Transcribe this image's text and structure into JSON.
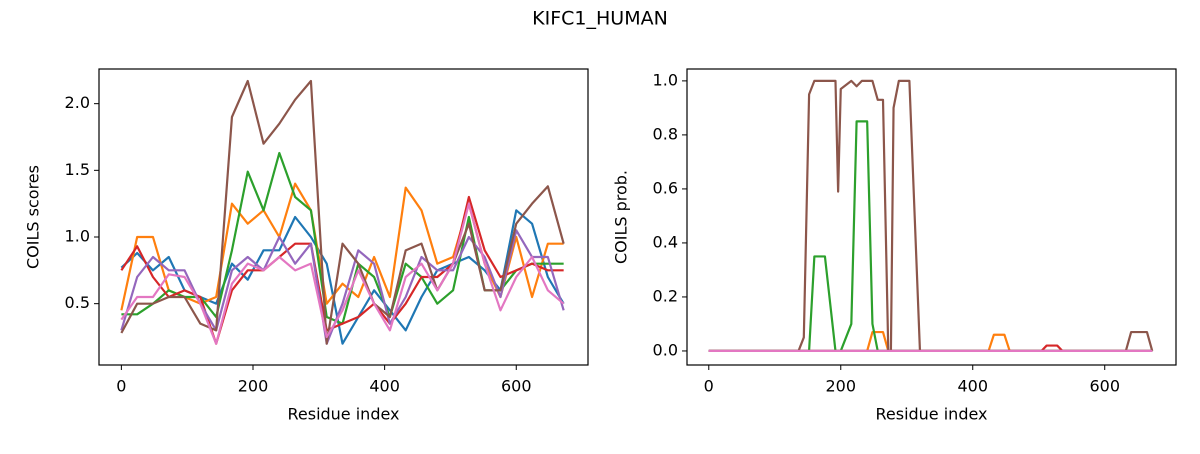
{
  "title": "KIFC1_HUMAN",
  "chart_data": [
    {
      "type": "line",
      "xlabel": "Residue index",
      "ylabel": "COILS scores",
      "xlim": [
        -34,
        709
      ],
      "ylim": [
        0.04,
        2.26
      ],
      "xticks": [
        0,
        200,
        400,
        600
      ],
      "yticks": [
        0.5,
        {
          "value": 1.0,
          "label": "1.0"
        },
        1.5,
        {
          "value": 2.0,
          "label": "2.0"
        }
      ],
      "x": [
        0,
        24,
        48,
        72,
        96,
        120,
        144,
        168,
        192,
        216,
        240,
        264,
        288,
        312,
        336,
        360,
        384,
        408,
        432,
        456,
        480,
        504,
        528,
        552,
        576,
        600,
        624,
        648,
        672
      ],
      "series": [
        {
          "color": "#1f77b4",
          "values": [
            0.77,
            0.88,
            0.75,
            0.85,
            0.6,
            0.55,
            0.5,
            0.8,
            0.68,
            0.9,
            0.9,
            1.15,
            1.0,
            0.8,
            0.2,
            0.4,
            0.6,
            0.45,
            0.3,
            0.55,
            0.75,
            0.8,
            0.85,
            0.75,
            0.6,
            1.2,
            1.1,
            0.7,
            0.5
          ]
        },
        {
          "color": "#ff7f0e",
          "values": [
            0.45,
            1.0,
            1.0,
            0.6,
            0.55,
            0.5,
            0.55,
            1.25,
            1.1,
            1.2,
            1.0,
            1.4,
            1.2,
            0.5,
            0.65,
            0.55,
            0.85,
            0.55,
            1.37,
            1.2,
            0.8,
            0.85,
            1.25,
            0.8,
            0.55,
            1.0,
            0.55,
            0.95,
            0.95
          ]
        },
        {
          "color": "#2ca02c",
          "values": [
            0.42,
            0.42,
            0.5,
            0.6,
            0.55,
            0.55,
            0.4,
            0.9,
            1.49,
            1.2,
            1.63,
            1.3,
            1.2,
            0.4,
            0.35,
            0.8,
            0.7,
            0.4,
            0.8,
            0.7,
            0.5,
            0.6,
            1.15,
            0.6,
            0.6,
            0.75,
            0.8,
            0.8,
            0.8
          ]
        },
        {
          "color": "#d62728",
          "values": [
            0.75,
            0.93,
            0.7,
            0.55,
            0.6,
            0.55,
            0.2,
            0.6,
            0.75,
            0.75,
            0.85,
            0.95,
            0.95,
            0.3,
            0.35,
            0.4,
            0.5,
            0.35,
            0.5,
            0.7,
            0.7,
            0.8,
            1.3,
            0.9,
            0.7,
            0.75,
            0.8,
            0.75,
            0.75
          ]
        },
        {
          "color": "#9467bd",
          "values": [
            0.3,
            0.7,
            0.85,
            0.75,
            0.75,
            0.5,
            0.3,
            0.75,
            0.85,
            0.75,
            1.0,
            0.8,
            0.95,
            0.2,
            0.5,
            0.9,
            0.8,
            0.35,
            0.55,
            0.85,
            0.75,
            0.75,
            1.0,
            0.85,
            0.55,
            1.05,
            0.85,
            0.85,
            0.45
          ]
        },
        {
          "color": "#8c564b",
          "values": [
            0.28,
            0.5,
            0.5,
            0.55,
            0.55,
            0.35,
            0.3,
            1.9,
            2.17,
            1.7,
            1.85,
            2.03,
            2.17,
            0.2,
            0.95,
            0.8,
            0.5,
            0.4,
            0.9,
            0.95,
            0.6,
            0.8,
            1.1,
            0.6,
            0.6,
            1.1,
            1.25,
            1.38,
            0.95
          ]
        },
        {
          "color": "#e377c2",
          "values": [
            0.38,
            0.55,
            0.55,
            0.72,
            0.7,
            0.5,
            0.2,
            0.65,
            0.8,
            0.75,
            0.85,
            0.75,
            0.8,
            0.25,
            0.45,
            0.75,
            0.5,
            0.3,
            0.7,
            0.8,
            0.6,
            0.8,
            1.25,
            0.8,
            0.45,
            0.7,
            0.85,
            0.6,
            0.5
          ]
        }
      ]
    },
    {
      "type": "line",
      "xlabel": "Residue index",
      "ylabel": "COILS prob.",
      "xlim": [
        -33,
        708
      ],
      "ylim": [
        -0.052,
        1.044
      ],
      "xticks": [
        0,
        200,
        400,
        600
      ],
      "yticks": [
        {
          "value": 0.0,
          "label": "0.0"
        },
        0.2,
        0.4,
        0.6,
        0.8,
        {
          "value": 1.0,
          "label": "1.0"
        }
      ],
      "x": [
        0,
        120,
        136,
        144,
        152,
        160,
        176,
        192,
        196,
        200,
        216,
        224,
        232,
        240,
        248,
        256,
        264,
        272,
        276,
        280,
        288,
        296,
        304,
        312,
        320,
        400,
        424,
        432,
        448,
        456,
        504,
        512,
        528,
        536,
        600,
        632,
        640,
        656,
        664,
        672
      ],
      "series": [
        {
          "color": "#1f77b4",
          "values": [
            0,
            0,
            0,
            0,
            0,
            0,
            0,
            0,
            0,
            0,
            0,
            0,
            0,
            0,
            0,
            0,
            0,
            0,
            0,
            0,
            0,
            0,
            0,
            0,
            0,
            0,
            0,
            0,
            0,
            0,
            0,
            0,
            0,
            0,
            0,
            0,
            0,
            0,
            0,
            0
          ]
        },
        {
          "color": "#ff7f0e",
          "values": [
            0,
            0,
            0,
            0,
            0,
            0,
            0,
            0,
            0,
            0,
            0,
            0,
            0,
            0,
            0.07,
            0.07,
            0.07,
            0,
            0,
            0,
            0,
            0,
            0,
            0,
            0,
            0,
            0,
            0.06,
            0.06,
            0,
            0,
            0,
            0,
            0,
            0,
            0,
            0,
            0,
            0,
            0
          ]
        },
        {
          "color": "#2ca02c",
          "values": [
            0,
            0,
            0,
            0,
            0,
            0.35,
            0.35,
            0,
            0,
            0,
            0.1,
            0.85,
            0.85,
            0.85,
            0.1,
            0,
            0,
            0,
            0,
            0,
            0,
            0,
            0,
            0,
            0,
            0,
            0,
            0,
            0,
            0,
            0,
            0,
            0,
            0,
            0,
            0,
            0,
            0,
            0,
            0
          ]
        },
        {
          "color": "#d62728",
          "values": [
            0,
            0,
            0,
            0,
            0,
            0,
            0,
            0,
            0,
            0,
            0,
            0,
            0,
            0,
            0,
            0,
            0,
            0,
            0,
            0,
            0,
            0,
            0,
            0,
            0,
            0,
            0,
            0,
            0,
            0,
            0,
            0.02,
            0.02,
            0,
            0,
            0,
            0,
            0,
            0,
            0
          ]
        },
        {
          "color": "#9467bd",
          "values": [
            0,
            0,
            0,
            0,
            0,
            0,
            0,
            0,
            0,
            0,
            0,
            0,
            0,
            0,
            0,
            0,
            0,
            0,
            0,
            0,
            0,
            0,
            0,
            0,
            0,
            0,
            0,
            0,
            0,
            0,
            0,
            0,
            0,
            0,
            0,
            0,
            0,
            0,
            0,
            0
          ]
        },
        {
          "color": "#8c564b",
          "values": [
            0,
            0,
            0,
            0.05,
            0.95,
            1,
            1,
            1,
            0.59,
            0.97,
            1,
            0.98,
            1,
            1,
            1,
            0.93,
            0.93,
            0,
            0,
            0.9,
            1,
            1,
            1,
            0.5,
            0,
            0,
            0,
            0,
            0,
            0,
            0,
            0,
            0,
            0,
            0,
            0,
            0.07,
            0.07,
            0.07,
            0
          ]
        },
        {
          "color": "#e377c2",
          "values": [
            0,
            0,
            0,
            0,
            0,
            0,
            0,
            0,
            0,
            0,
            0,
            0,
            0,
            0,
            0,
            0,
            0,
            0,
            0,
            0,
            0,
            0,
            0,
            0,
            0,
            0,
            0,
            0,
            0,
            0,
            0,
            0,
            0,
            0,
            0,
            0,
            0,
            0,
            0,
            0
          ]
        }
      ]
    }
  ]
}
